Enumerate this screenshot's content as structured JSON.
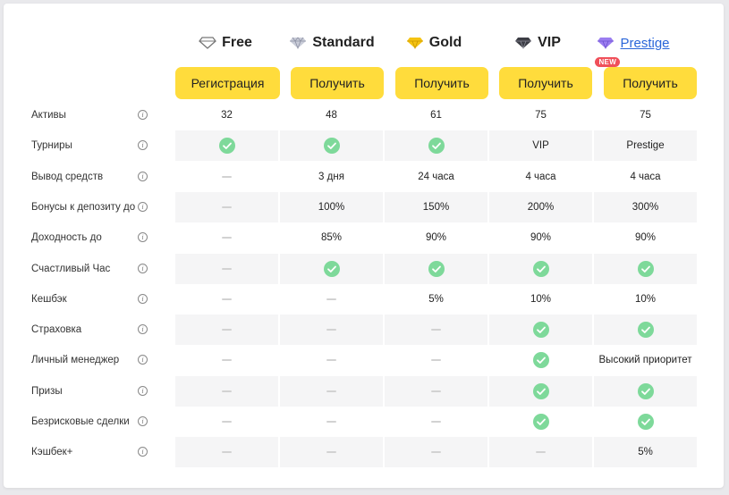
{
  "tiers": [
    {
      "name": "Free",
      "icon": "outline-diamond-icon"
    },
    {
      "name": "Standard",
      "icon": "silver-diamond-icon"
    },
    {
      "name": "Gold",
      "icon": "gold-diamond-icon"
    },
    {
      "name": "VIP",
      "icon": "dark-diamond-icon"
    },
    {
      "name": "Prestige",
      "icon": "purple-diamond-icon",
      "badge": "NEW"
    }
  ],
  "buttons": [
    "Регистрация",
    "Получить",
    "Получить",
    "Получить",
    "Получить"
  ],
  "colors": {
    "button": "#ffdc3c",
    "check": "#7ed99a",
    "link": "#2a66d9",
    "badge": "#f0505a"
  },
  "rows": [
    {
      "label": "Активы",
      "cells": [
        "32",
        "48",
        "61",
        "75",
        "75"
      ]
    },
    {
      "label": "Турниры",
      "cells": [
        "check",
        "check",
        "check",
        "VIP",
        "Prestige"
      ]
    },
    {
      "label": "Вывод средств",
      "cells": [
        "dash",
        "3 дня",
        "24 часа",
        "4 часа",
        "4 часа"
      ]
    },
    {
      "label": "Бонусы к депозиту до",
      "cells": [
        "dash",
        "100%",
        "150%",
        "200%",
        "300%"
      ]
    },
    {
      "label": "Доходность до",
      "cells": [
        "dash",
        "85%",
        "90%",
        "90%",
        "90%"
      ]
    },
    {
      "label": "Счастливый Час",
      "cells": [
        "dash",
        "check",
        "check",
        "check",
        "check"
      ]
    },
    {
      "label": "Кешбэк",
      "cells": [
        "dash",
        "dash",
        "5%",
        "10%",
        "10%"
      ]
    },
    {
      "label": "Страховка",
      "cells": [
        "dash",
        "dash",
        "dash",
        "check",
        "check"
      ]
    },
    {
      "label": "Личный менеджер",
      "cells": [
        "dash",
        "dash",
        "dash",
        "check",
        "Высокий приоритет"
      ]
    },
    {
      "label": "Призы",
      "cells": [
        "dash",
        "dash",
        "dash",
        "check",
        "check"
      ]
    },
    {
      "label": "Безрисковые сделки",
      "cells": [
        "dash",
        "dash",
        "dash",
        "check",
        "check"
      ]
    },
    {
      "label": "Кэшбек+",
      "cells": [
        "dash",
        "dash",
        "dash",
        "dash",
        "5%"
      ]
    }
  ]
}
